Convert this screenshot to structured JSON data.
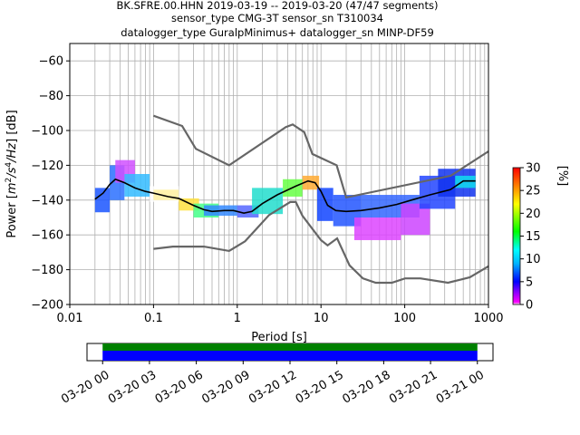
{
  "chart_data": [
    {
      "type": "heatmap",
      "title_lines": [
        "BK.SFRE.00.HHN   2019-03-19 -- 2019-03-20  (47/47 segments)",
        "sensor_type CMG-3T sensor_sn T310034",
        "datalogger_type GuralpMinimus+ datalogger_sn MINP-DF59"
      ],
      "xlabel": "Period [s]",
      "xlabel_main": "Period [s]",
      "ylabel": "Power [m²/s⁴/Hz] [dB]",
      "ylabel_prefix": "Power [",
      "ylabel_m": "m",
      "ylabel_m_sup": "2",
      "ylabel_s": "/s",
      "ylabel_s_sup": "4",
      "ylabel_hz": "/Hz",
      "ylabel_suffix": "] [dB]",
      "x_scale": "log",
      "xlim": [
        0.01,
        1000
      ],
      "ylim": [
        -200,
        -50
      ],
      "grid": true,
      "x_ticks": [
        {
          "value": 0.01,
          "label": "0.01"
        },
        {
          "value": 0.1,
          "label": "0.1"
        },
        {
          "value": 1,
          "label": "1"
        },
        {
          "value": 10,
          "label": "10"
        },
        {
          "value": 100,
          "label": "100"
        },
        {
          "value": 1000,
          "label": "1000"
        }
      ],
      "y_ticks": [
        {
          "value": -60,
          "label": "−60"
        },
        {
          "value": -80,
          "label": "−80"
        },
        {
          "value": -100,
          "label": "−100"
        },
        {
          "value": -120,
          "label": "−120"
        },
        {
          "value": -140,
          "label": "−140"
        },
        {
          "value": -160,
          "label": "−160"
        },
        {
          "value": -180,
          "label": "−180"
        },
        {
          "value": -200,
          "label": "−200"
        }
      ],
      "noise_model_high": [
        [
          0.1,
          -91.5
        ],
        [
          0.22,
          -97.4
        ],
        [
          0.32,
          -110.5
        ],
        [
          0.8,
          -120.0
        ],
        [
          3.8,
          -98.0
        ],
        [
          4.6,
          -96.5
        ],
        [
          6.3,
          -101.0
        ],
        [
          7.9,
          -113.5
        ],
        [
          15.4,
          -120.0
        ],
        [
          20,
          -138.5
        ],
        [
          354.8,
          -126.0
        ],
        [
          1000,
          -112.0
        ]
      ],
      "noise_model_low": [
        [
          0.1,
          -168.0
        ],
        [
          0.17,
          -166.7
        ],
        [
          0.4,
          -166.7
        ],
        [
          0.8,
          -169.2
        ],
        [
          1.24,
          -163.7
        ],
        [
          2.4,
          -148.6
        ],
        [
          4.3,
          -141.1
        ],
        [
          5.0,
          -141.1
        ],
        [
          6.0,
          -149.0
        ],
        [
          10.0,
          -163.0
        ],
        [
          12.0,
          -166.0
        ],
        [
          15.6,
          -162.0
        ],
        [
          21.9,
          -177.5
        ],
        [
          31.6,
          -185.0
        ],
        [
          45,
          -187.5
        ],
        [
          70,
          -187.5
        ],
        [
          101,
          -185.0
        ],
        [
          154,
          -185.0
        ],
        [
          328,
          -187.5
        ],
        [
          600,
          -184.4
        ],
        [
          1000,
          -178.0
        ]
      ],
      "mode_curve": [
        [
          0.02,
          -139.5
        ],
        [
          0.025,
          -136
        ],
        [
          0.03,
          -131
        ],
        [
          0.035,
          -128
        ],
        [
          0.045,
          -130
        ],
        [
          0.06,
          -133
        ],
        [
          0.08,
          -135
        ],
        [
          0.1,
          -136
        ],
        [
          0.15,
          -138
        ],
        [
          0.2,
          -139
        ],
        [
          0.3,
          -143
        ],
        [
          0.4,
          -145.5
        ],
        [
          0.5,
          -146.5
        ],
        [
          0.7,
          -146
        ],
        [
          0.9,
          -146
        ],
        [
          1.2,
          -147.5
        ],
        [
          1.5,
          -146.5
        ],
        [
          2,
          -142
        ],
        [
          3,
          -137
        ],
        [
          5,
          -132
        ],
        [
          7,
          -129
        ],
        [
          8.5,
          -130
        ],
        [
          10,
          -135
        ],
        [
          12,
          -143
        ],
        [
          15,
          -146
        ],
        [
          20,
          -146.5
        ],
        [
          30,
          -146
        ],
        [
          50,
          -144.5
        ],
        [
          80,
          -142.5
        ],
        [
          120,
          -140
        ],
        [
          200,
          -137
        ],
        [
          350,
          -134
        ],
        [
          500,
          -129
        ],
        [
          700,
          -129
        ]
      ],
      "ppsd_colormap": "pqlx",
      "ppsd_cells": [
        {
          "p0": 0.02,
          "p1": 0.03,
          "lo": -147,
          "hi": -133,
          "c": "#1a55ff"
        },
        {
          "p0": 0.03,
          "p1": 0.045,
          "lo": -140,
          "hi": -120,
          "c": "#2a70ff"
        },
        {
          "p0": 0.035,
          "p1": 0.06,
          "lo": -130,
          "hi": -117,
          "c": "#d050ff"
        },
        {
          "p0": 0.045,
          "p1": 0.09,
          "lo": -138,
          "hi": -125,
          "c": "#33bbff"
        },
        {
          "p0": 0.09,
          "p1": 0.2,
          "lo": -141,
          "hi": -132,
          "c": "#ffffff"
        },
        {
          "p0": 0.1,
          "p1": 0.2,
          "lo": -140,
          "hi": -134,
          "c": "#fff0a0"
        },
        {
          "p0": 0.2,
          "p1": 0.35,
          "lo": -146,
          "hi": -139,
          "c": "#ffe040"
        },
        {
          "p0": 0.3,
          "p1": 0.6,
          "lo": -150,
          "hi": -142,
          "c": "#44ff88"
        },
        {
          "p0": 0.4,
          "p1": 1.0,
          "lo": -149,
          "hi": -143,
          "c": "#3388ff"
        },
        {
          "p0": 1.0,
          "p1": 1.8,
          "lo": -150,
          "hi": -143,
          "c": "#5566ff"
        },
        {
          "p0": 1.5,
          "p1": 3.5,
          "lo": -148,
          "hi": -133,
          "c": "#22ddcc"
        },
        {
          "p0": 3.5,
          "p1": 6.0,
          "lo": -138,
          "hi": -128,
          "c": "#66ff44"
        },
        {
          "p0": 6.0,
          "p1": 9.5,
          "lo": -134,
          "hi": -126,
          "c": "#ffaa33"
        },
        {
          "p0": 9.0,
          "p1": 14,
          "lo": -152,
          "hi": -133,
          "c": "#1144ff"
        },
        {
          "p0": 14,
          "p1": 30,
          "lo": -155,
          "hi": -137,
          "c": "#2255ff"
        },
        {
          "p0": 25,
          "p1": 90,
          "lo": -163,
          "hi": -150,
          "c": "#dd44ff"
        },
        {
          "p0": 30,
          "p1": 150,
          "lo": -150,
          "hi": -137,
          "c": "#3366ff"
        },
        {
          "p0": 90,
          "p1": 200,
          "lo": -160,
          "hi": -142,
          "c": "#cc44ff"
        },
        {
          "p0": 150,
          "p1": 400,
          "lo": -145,
          "hi": -126,
          "c": "#2244ff"
        },
        {
          "p0": 250,
          "p1": 700,
          "lo": -138,
          "hi": -122,
          "c": "#1133ee"
        },
        {
          "p0": 400,
          "p1": 700,
          "lo": -133,
          "hi": -126,
          "c": "#11ddee"
        }
      ]
    },
    {
      "type": "colorbar",
      "label": "[%]",
      "range": [
        0,
        30
      ],
      "ticks": [
        {
          "value": 0,
          "label": "0"
        },
        {
          "value": 5,
          "label": "5"
        },
        {
          "value": 10,
          "label": "10"
        },
        {
          "value": 15,
          "label": "15"
        },
        {
          "value": 20,
          "label": "20"
        },
        {
          "value": 25,
          "label": "25"
        },
        {
          "value": 30,
          "label": "30"
        }
      ],
      "stops": [
        {
          "v": 0,
          "c": "#ffffff"
        },
        {
          "v": 0.5,
          "c": "#ff00ff"
        },
        {
          "v": 3,
          "c": "#7a00ff"
        },
        {
          "v": 5,
          "c": "#0000ff"
        },
        {
          "v": 9,
          "c": "#00b4ff"
        },
        {
          "v": 12,
          "c": "#00ffff"
        },
        {
          "v": 16,
          "c": "#00ff00"
        },
        {
          "v": 22,
          "c": "#ffff00"
        },
        {
          "v": 26,
          "c": "#ff8000"
        },
        {
          "v": 30,
          "c": "#ff0000"
        }
      ]
    },
    {
      "type": "timeline",
      "range": [
        "2019-03-19 23:00",
        "2019-03-21 01:00"
      ],
      "data_coverage": [
        "2019-03-20 00:00",
        "2019-03-21 00:00"
      ],
      "bar_colors": {
        "processed": "#008000",
        "data": "#0000ff"
      },
      "ticks": [
        {
          "hours": 0,
          "label": "03-20 00"
        },
        {
          "hours": 3,
          "label": "03-20 03"
        },
        {
          "hours": 6,
          "label": "03-20 06"
        },
        {
          "hours": 9,
          "label": "03-20 09"
        },
        {
          "hours": 12,
          "label": "03-20 12"
        },
        {
          "hours": 15,
          "label": "03-20 15"
        },
        {
          "hours": 18,
          "label": "03-20 18"
        },
        {
          "hours": 21,
          "label": "03-20 21"
        },
        {
          "hours": 24,
          "label": "03-21 00"
        }
      ]
    }
  ]
}
